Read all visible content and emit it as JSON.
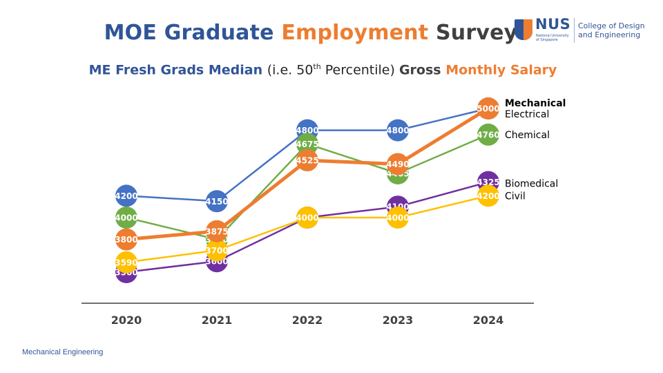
{
  "title": {
    "part1": "MOE Graduate ",
    "part2": "Employment",
    "part3": " Survey"
  },
  "subtitle": {
    "part1": "ME Fresh Grads Median ",
    "part2": "(i.e. 50",
    "sup": "th",
    "part3": " Percentile) ",
    "part4": "Gross ",
    "part5": "Monthly Salary"
  },
  "logo": {
    "nus": "NUS",
    "fine1": "National University",
    "fine2": "of Singapore",
    "college1": "College of Design",
    "college2": "and Engineering"
  },
  "footer": "Mechanical Engineering",
  "colors": {
    "Mechanical": "#ed7d31",
    "Electrical": "#4472c4",
    "Chemical": "#70ad47",
    "Biomedical": "#7030a0",
    "Civil": "#ffc000"
  },
  "chart_data": {
    "type": "line",
    "title": "ME Fresh Grads Median (i.e. 50th Percentile) Gross Monthly Salary",
    "x": [
      "2020",
      "2021",
      "2022",
      "2023",
      "2024"
    ],
    "series": [
      {
        "name": "Electrical",
        "values": [
          4200,
          4150,
          4800,
          4800,
          5000
        ]
      },
      {
        "name": "Chemical",
        "values": [
          4000,
          3800,
          4675,
          4405,
          4760
        ]
      },
      {
        "name": "Biomedical",
        "values": [
          3500,
          3600,
          4000,
          4100,
          4325
        ]
      },
      {
        "name": "Civil",
        "values": [
          3590,
          3700,
          4000,
          4000,
          4200
        ]
      },
      {
        "name": "Mechanical",
        "values": [
          3800,
          3875,
          4525,
          4490,
          5000
        ]
      }
    ],
    "data_labels": true,
    "grid": false,
    "legend": "end-of-line labels"
  }
}
